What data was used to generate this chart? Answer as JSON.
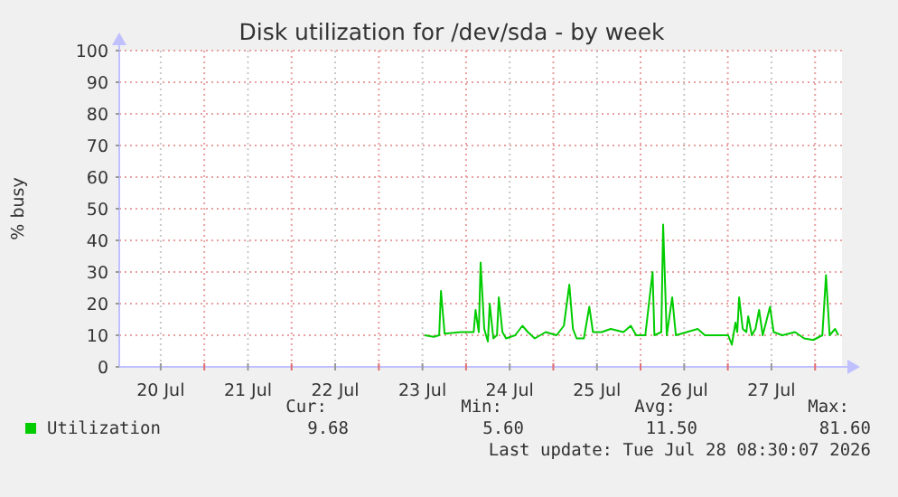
{
  "chart_data": {
    "type": "line",
    "title": "Disk utilization for /dev/sda - by week",
    "ylabel": "% busy",
    "xlim": [
      "2026-07-20T00:36",
      "2026-07-28T07:24"
    ],
    "xticks": [
      {
        "value": "2026-07-20T12:00",
        "label": "20 Jul"
      },
      {
        "value": "2026-07-21T00:00",
        "label": null
      },
      {
        "value": "2026-07-21T12:00",
        "label": "21 Jul"
      },
      {
        "value": "2026-07-22T00:00",
        "label": null
      },
      {
        "value": "2026-07-22T12:00",
        "label": "22 Jul"
      },
      {
        "value": "2026-07-23T00:00",
        "label": null
      },
      {
        "value": "2026-07-23T12:00",
        "label": "23 Jul"
      },
      {
        "value": "2026-07-24T00:00",
        "label": null
      },
      {
        "value": "2026-07-24T12:00",
        "label": "24 Jul"
      },
      {
        "value": "2026-07-25T00:00",
        "label": null
      },
      {
        "value": "2026-07-25T12:00",
        "label": "25 Jul"
      },
      {
        "value": "2026-07-26T00:00",
        "label": null
      },
      {
        "value": "2026-07-26T12:00",
        "label": "26 Jul"
      },
      {
        "value": "2026-07-27T00:00",
        "label": null
      },
      {
        "value": "2026-07-27T12:00",
        "label": "27 Jul"
      },
      {
        "value": "2026-07-28T00:00",
        "label": null
      }
    ],
    "ylim": [
      0,
      100
    ],
    "yticks": [
      0,
      10,
      20,
      30,
      40,
      50,
      60,
      70,
      80,
      90,
      100
    ],
    "grid": true,
    "legend": "bottom left",
    "marker": "none",
    "line_style": "solid",
    "series": [
      {
        "name": "Utilization",
        "color": "#00cc00",
        "x": [
          "2026-07-23T12:36",
          "2026-07-23T15:06",
          "2026-07-23T16:36",
          "2026-07-23T17:06",
          "2026-07-23T18:06",
          "2026-07-23T22:36",
          "2026-07-24T02:06",
          "2026-07-24T02:36",
          "2026-07-24T03:30",
          "2026-07-24T04:00",
          "2026-07-24T05:00",
          "2026-07-24T06:00",
          "2026-07-24T06:30",
          "2026-07-24T07:30",
          "2026-07-24T08:30",
          "2026-07-24T09:00",
          "2026-07-24T10:00",
          "2026-07-24T11:00",
          "2026-07-24T13:30",
          "2026-07-24T15:30",
          "2026-07-24T17:00",
          "2026-07-24T18:54",
          "2026-07-24T21:54",
          "2026-07-25T00:54",
          "2026-07-25T02:54",
          "2026-07-25T04:24",
          "2026-07-25T05:24",
          "2026-07-25T06:24",
          "2026-07-25T08:24",
          "2026-07-25T09:54",
          "2026-07-25T10:54",
          "2026-07-25T13:18",
          "2026-07-25T15:48",
          "2026-07-25T19:18",
          "2026-07-25T21:18",
          "2026-07-25T22:48",
          "2026-07-26T01:18",
          "2026-07-26T03:18",
          "2026-07-26T03:48",
          "2026-07-26T05:42",
          "2026-07-26T06:12",
          "2026-07-26T07:12",
          "2026-07-26T08:42",
          "2026-07-26T09:42",
          "2026-07-26T12:42",
          "2026-07-26T15:42",
          "2026-07-26T17:42",
          "2026-07-26T20:12",
          "2026-07-27T00:06",
          "2026-07-27T01:06",
          "2026-07-27T02:06",
          "2026-07-27T02:36",
          "2026-07-27T03:06",
          "2026-07-27T04:06",
          "2026-07-27T05:06",
          "2026-07-27T05:36",
          "2026-07-27T06:36",
          "2026-07-27T07:36",
          "2026-07-27T08:36",
          "2026-07-27T09:36",
          "2026-07-27T11:36",
          "2026-07-27T12:36",
          "2026-07-27T15:00",
          "2026-07-27T18:30",
          "2026-07-27T21:00",
          "2026-07-27T23:30",
          "2026-07-28T02:00",
          "2026-07-28T03:00",
          "2026-07-28T04:00",
          "2026-07-28T05:30",
          "2026-07-28T06:24"
        ],
        "values": [
          10,
          9.5,
          10,
          24,
          10.5,
          11,
          11,
          18,
          11,
          33,
          12,
          8,
          20,
          9,
          10,
          22,
          11,
          9,
          10,
          13,
          11,
          9,
          11,
          10,
          13,
          26,
          12,
          9,
          9,
          19,
          11,
          11,
          12,
          11,
          13,
          10,
          10,
          30,
          10,
          11,
          45,
          10,
          22,
          10,
          11,
          12,
          10,
          10,
          10,
          7,
          14,
          11,
          22,
          12,
          11,
          16,
          10,
          12,
          18,
          10,
          19,
          11,
          10,
          11,
          9,
          8.5,
          10,
          29,
          10,
          12,
          10
        ]
      }
    ],
    "annotations": [
      "Cur:",
      "9.68",
      "Min:",
      "5.60",
      "Avg:",
      "11.50",
      "Max:",
      "81.60",
      "Last update: Tue Jul 28 08:30:07 2026"
    ]
  }
}
